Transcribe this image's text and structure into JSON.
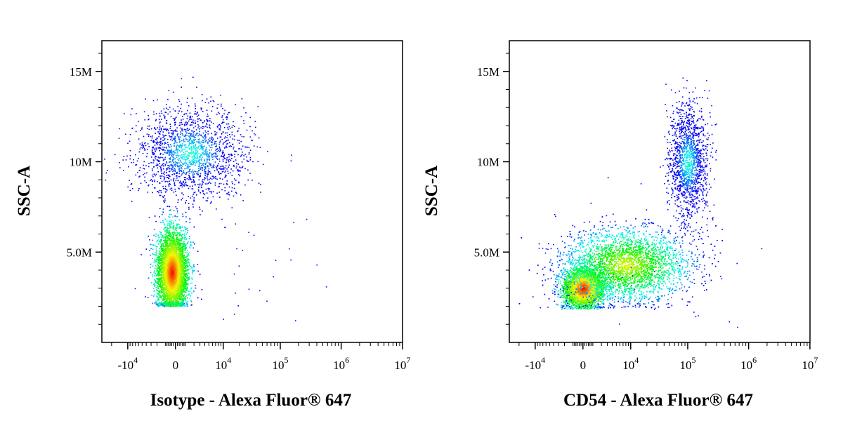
{
  "colors": {
    "density_low": "#0000ff",
    "density_mid": "#00d060",
    "density_high": "#ff2000",
    "axis": "#000000"
  },
  "chart_data": [
    {
      "type": "scatter",
      "subtype": "flow-cytometry-density-plot",
      "xlabel": "Isotype - Alexa Fluor® 647",
      "ylabel": "SSC-A",
      "x_scale": "biexponential",
      "y_scale": "linear",
      "xlim": [
        -30000,
        10000000
      ],
      "ylim": [
        0,
        16700000
      ],
      "x_ticks": [
        {
          "value": -10000,
          "base": "-10",
          "exp": "4"
        },
        {
          "value": 0,
          "base": "0",
          "exp": ""
        },
        {
          "value": 10000,
          "base": "10",
          "exp": "4"
        },
        {
          "value": 100000,
          "base": "10",
          "exp": "5"
        },
        {
          "value": 1000000,
          "base": "10",
          "exp": "6"
        },
        {
          "value": 10000000,
          "base": "10",
          "exp": "7"
        }
      ],
      "y_ticks": [
        {
          "value": 5000000,
          "label": "5.0M"
        },
        {
          "value": 10000000,
          "label": "10M"
        },
        {
          "value": 15000000,
          "label": "15M"
        }
      ],
      "populations": [
        {
          "name": "",
          "x_center": -300,
          "y_center": 3900000,
          "count": 6000,
          "peak_density": "high"
        },
        {
          "name": "",
          "x_center": 1500,
          "y_center": 10500000,
          "count": 1800,
          "peak_density": "low"
        }
      ],
      "grid": false,
      "legend": "none"
    },
    {
      "type": "scatter",
      "subtype": "flow-cytometry-density-plot",
      "xlabel": "CD54 - Alexa Fluor® 647",
      "ylabel": "SSC-A",
      "x_scale": "biexponential",
      "y_scale": "linear",
      "xlim": [
        -30000,
        10000000
      ],
      "ylim": [
        0,
        16700000
      ],
      "x_ticks": [
        {
          "value": -10000,
          "base": "-10",
          "exp": "4"
        },
        {
          "value": 0,
          "base": "0",
          "exp": ""
        },
        {
          "value": 10000,
          "base": "10",
          "exp": "4"
        },
        {
          "value": 100000,
          "base": "10",
          "exp": "5"
        },
        {
          "value": 1000000,
          "base": "10",
          "exp": "6"
        },
        {
          "value": 10000000,
          "base": "10",
          "exp": "7"
        }
      ],
      "y_ticks": [
        {
          "value": 5000000,
          "label": "5.0M"
        },
        {
          "value": 10000000,
          "label": "10M"
        },
        {
          "value": 15000000,
          "label": "15M"
        }
      ],
      "populations": [
        {
          "name": "",
          "x_center": 0,
          "y_center": 3000000,
          "count": 3500,
          "peak_density": "high"
        },
        {
          "name": "",
          "x_center": 8000,
          "y_center": 4300000,
          "count": 4500,
          "peak_density": "medium"
        },
        {
          "name": "",
          "x_center": 100000,
          "y_center": 10000000,
          "count": 1500,
          "peak_density": "low"
        }
      ],
      "grid": false,
      "legend": "none"
    }
  ]
}
